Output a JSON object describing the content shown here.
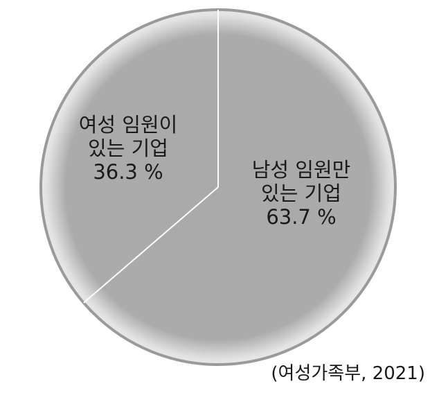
{
  "chart_data": {
    "type": "pie",
    "slices": [
      {
        "label_lines": [
          "남성 임원만",
          "있는 기업"
        ],
        "value": 63.7,
        "value_label": "63.7 %",
        "color": "#aaaaaa"
      },
      {
        "label_lines": [
          "여성 임원이",
          "있는 기업"
        ],
        "value": 36.3,
        "value_label": "36.3 %",
        "color": "#aaaaaa"
      }
    ],
    "start": "top",
    "source": "(여성가족부, 2021)"
  }
}
